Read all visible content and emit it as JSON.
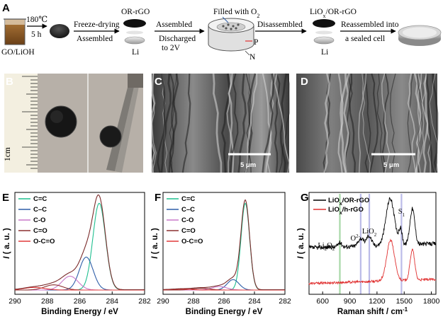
{
  "panels": {
    "A": {
      "label": "A",
      "beaker_temp": "180℃",
      "beaker_time": "5 h",
      "beaker_caption": "GO/LiOH",
      "step1_top": "Freeze-drying",
      "step1_bottom": "Assembled",
      "electrode_top": "OR-rGO",
      "electrode_bottom": "Li",
      "step2_top": "Assembled",
      "step2_bottom1": "Discharged",
      "step2_bottom2": "to 2V",
      "cell_top": "Filled with O",
      "cell_top_sub": "2",
      "cell_p": "P",
      "cell_n": "N",
      "step3_top": "Disassembled",
      "prod_top_a": "LiO",
      "prod_top_sub": "x",
      "prod_top_b": "/OR-rGO",
      "prod_bottom": "Li",
      "step4_top": "Reassembled into",
      "step4_bottom": "a sealed cell"
    },
    "B": {
      "label": "B",
      "ruler_unit": "1cm"
    },
    "C": {
      "label": "C",
      "scale": "5 μm"
    },
    "D": {
      "label": "D",
      "scale": "5 μm"
    },
    "E": {
      "label": "E"
    },
    "F": {
      "label": "F"
    },
    "G": {
      "label": "G"
    }
  },
  "colors": {
    "cc": "#1fbf8f",
    "c_c": "#2f5ea8",
    "co": "#c878c8",
    "c_o": "#8c3030",
    "occo": "#e03a3a",
    "envelope": "#7a2a2a",
    "black": "#000000",
    "red": "#e03030",
    "ref_green": "#9fd49f",
    "ref_blue": "#b4b4e6"
  },
  "chart_data": [
    {
      "panel": "E",
      "type": "line",
      "xlabel": "Binding Energy / eV",
      "ylabel": "I ( a. u. )",
      "xlim": [
        290,
        282
      ],
      "xticks": [
        290,
        288,
        286,
        284,
        282
      ],
      "legend": [
        "C=C",
        "C–C",
        "C-O",
        "C=O",
        "O-C=O"
      ],
      "legend_placement": "top-left",
      "peaks": [
        {
          "name": "C=C",
          "center": 284.8,
          "amplitude": 1.0,
          "width": 0.55
        },
        {
          "name": "C–C",
          "center": 285.6,
          "amplitude": 0.38,
          "width": 0.6
        },
        {
          "name": "C-O",
          "center": 286.6,
          "amplitude": 0.16,
          "width": 0.7
        },
        {
          "name": "C=O",
          "center": 287.6,
          "amplitude": 0.06,
          "width": 0.8
        },
        {
          "name": "O-C=O",
          "center": 288.8,
          "amplitude": 0.03,
          "width": 0.9
        }
      ]
    },
    {
      "panel": "F",
      "type": "line",
      "xlabel": "Binding Energy / eV",
      "ylabel": "I ( a. u. )",
      "xlim": [
        290,
        282
      ],
      "xticks": [
        290,
        288,
        286,
        284,
        282
      ],
      "legend": [
        "C=C",
        "C–C",
        "C-O",
        "C=O",
        "O-C=O"
      ],
      "legend_placement": "top-left",
      "peaks": [
        {
          "name": "C=C",
          "center": 284.6,
          "amplitude": 1.0,
          "width": 0.4
        },
        {
          "name": "C–C",
          "center": 285.4,
          "amplitude": 0.12,
          "width": 0.55
        },
        {
          "name": "C-O",
          "center": 286.3,
          "amplitude": 0.04,
          "width": 0.7
        },
        {
          "name": "C=O",
          "center": 287.5,
          "amplitude": 0.02,
          "width": 0.8
        },
        {
          "name": "O-C=O",
          "center": 288.8,
          "amplitude": 0.01,
          "width": 0.9
        }
      ]
    },
    {
      "panel": "G",
      "type": "line",
      "xlabel": "Raman shift / cm",
      "xlabel_sup": "-1",
      "ylabel": "I ( a. u. )",
      "xlim": [
        450,
        1850
      ],
      "xticks": [
        600,
        900,
        1200,
        1500,
        1800
      ],
      "series": [
        {
          "name": "LiO",
          "name_sub": "x",
          "name_rest": "/OR-rGO",
          "peaks": [
            [
              1345,
              0.55,
              65
            ],
            [
              1590,
              0.42,
              38
            ],
            [
              1460,
              0.18,
              25
            ],
            [
              1110,
              0.12,
              40
            ],
            [
              1020,
              0.09,
              40
            ],
            [
              790,
              0.05,
              30
            ]
          ],
          "offset": 0.42,
          "noise": 0.05
        },
        {
          "name": "LiO",
          "name_sub": "x",
          "name_rest": "/h-rGO",
          "peaks": [
            [
              1350,
              0.48,
              60
            ],
            [
              1590,
              0.36,
              35
            ]
          ],
          "offset": 0.0,
          "noise": 0.028
        }
      ],
      "ref_lines": [
        {
          "x": 790,
          "color": "ref_green"
        },
        {
          "x": 1020,
          "color": "ref_blue"
        },
        {
          "x": 1115,
          "color": "ref_blue"
        },
        {
          "x": 1470,
          "color": "ref_blue"
        }
      ],
      "annotations": [
        {
          "text": "Li",
          "sub": "2",
          "text2": "O",
          "sub2": "2",
          "x": 640
        },
        {
          "text": "O",
          "sup": "2",
          "sup_extra": "-",
          "x": 960
        },
        {
          "text": "LiO",
          "sub": "2",
          "x": 1115
        },
        {
          "text": "S",
          "sub": "1",
          "x": 1470
        }
      ]
    }
  ]
}
